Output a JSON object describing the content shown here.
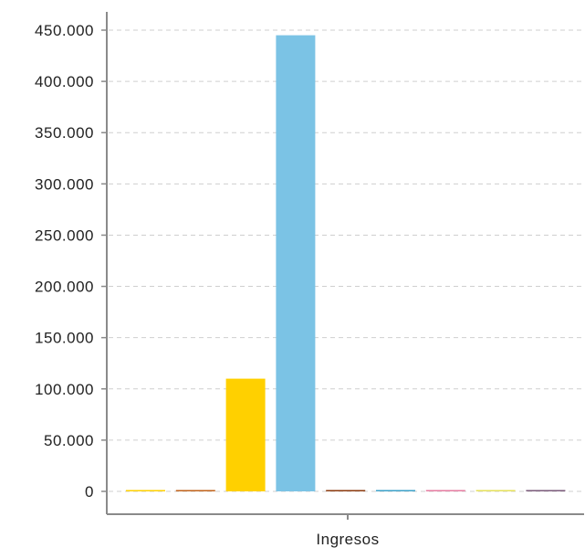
{
  "chart_data": {
    "type": "bar",
    "categories": [
      "Ingresos"
    ],
    "series": [
      {
        "values": [
          500
        ],
        "color": "#FFD000"
      },
      {
        "values": [
          600
        ],
        "color": "#C0621A"
      },
      {
        "values": [
          110000
        ],
        "color": "#FFD000"
      },
      {
        "values": [
          445000
        ],
        "color": "#7BC3E5"
      },
      {
        "values": [
          900
        ],
        "color": "#8B3A0E"
      },
      {
        "values": [
          500
        ],
        "color": "#3BA0C8"
      },
      {
        "values": [
          500
        ],
        "color": "#E57BA0"
      },
      {
        "values": [
          400
        ],
        "color": "#E5E05A"
      },
      {
        "values": [
          500
        ],
        "color": "#7A5A7A"
      }
    ],
    "yticks": [
      "0",
      "50.000",
      "100.000",
      "150.000",
      "200.000",
      "250.000",
      "300.000",
      "350.000",
      "400.000",
      "450.000"
    ],
    "ylim": [
      0,
      450000
    ],
    "grid": true,
    "title": "",
    "xlabel": "",
    "ylabel": ""
  }
}
